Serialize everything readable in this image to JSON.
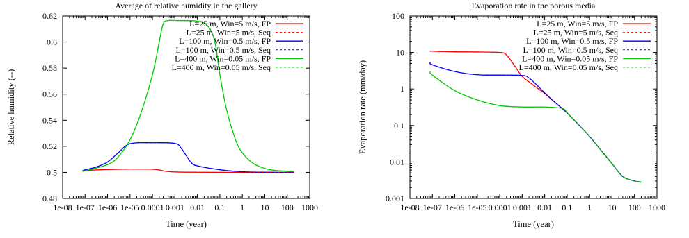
{
  "chart_data": [
    {
      "type": "line",
      "title": "Average of relative humidity in the gallery",
      "xlabel": "Time (year)",
      "ylabel": "Relative humidity (--)",
      "xscale": "log",
      "yscale": "linear",
      "xlim": [
        1e-08,
        1000
      ],
      "ylim": [
        0.48,
        0.62
      ],
      "x_tick_labels": [
        "1e-08",
        "1e-07",
        "1e-06",
        "1e-05",
        "0.0001",
        "0.001",
        "0.01",
        "0.1",
        "1",
        "10",
        "100",
        "1000"
      ],
      "y_tick_labels": [
        "0.48",
        "0.5",
        "0.52",
        "0.54",
        "0.56",
        "0.58",
        "0.6",
        "0.62"
      ],
      "grid": false,
      "legend_position": "top-right",
      "series": [
        {
          "name": "L=25 m, Win=5 m/s, FP",
          "color": "#ff0000",
          "dash": "solid",
          "x": [
            8e-08,
            1e-07,
            1e-06,
            1e-05,
            0.0001,
            0.0002,
            0.0004,
            0.001,
            0.01,
            0.1,
            1,
            10,
            200
          ],
          "y": [
            0.5012,
            0.5015,
            0.5022,
            0.5025,
            0.5024,
            0.5018,
            0.5008,
            0.5003,
            0.5001,
            0.5,
            0.5,
            0.5,
            0.5
          ]
        },
        {
          "name": "L=25 m, Win=5 m/s, Seq",
          "color": "#ff0000",
          "dash": "dashed",
          "x": [
            8e-08,
            1e-07,
            1e-06,
            1e-05,
            0.0001,
            0.0002,
            0.0004,
            0.001,
            0.01,
            0.1,
            1,
            10,
            200
          ],
          "y": [
            0.5012,
            0.5015,
            0.5022,
            0.5025,
            0.5024,
            0.5018,
            0.5008,
            0.5003,
            0.5001,
            0.5,
            0.5,
            0.5,
            0.5
          ]
        },
        {
          "name": "L=100 m, Win=0.5 m/s, FP",
          "color": "#0000ff",
          "dash": "solid",
          "x": [
            8e-08,
            1e-07,
            3e-07,
            1e-06,
            3e-06,
            1e-05,
            0.0001,
            0.001,
            0.002,
            0.005,
            0.01,
            0.1,
            1,
            10,
            200
          ],
          "y": [
            0.5012,
            0.502,
            0.504,
            0.508,
            0.515,
            0.522,
            0.5227,
            0.5222,
            0.518,
            0.508,
            0.505,
            0.502,
            0.5005,
            0.5001,
            0.5
          ]
        },
        {
          "name": "L=100 m, Win=0.5 m/s, Seq",
          "color": "#0000ff",
          "dash": "dashed",
          "x": [
            8e-08,
            1e-07,
            3e-07,
            1e-06,
            3e-06,
            1e-05,
            0.0001,
            0.001,
            0.002,
            0.005,
            0.01,
            0.1,
            1,
            10,
            200
          ],
          "y": [
            0.5012,
            0.502,
            0.504,
            0.508,
            0.515,
            0.522,
            0.5227,
            0.5222,
            0.518,
            0.508,
            0.505,
            0.502,
            0.5005,
            0.5001,
            0.5
          ]
        },
        {
          "name": "L=400 m, Win=0.05 m/s, FP",
          "color": "#00cc00",
          "dash": "solid",
          "x": [
            8e-08,
            1e-07,
            1e-06,
            3e-06,
            1e-05,
            3e-05,
            0.0001,
            0.0002,
            0.0003,
            0.0005,
            0.001,
            0.01,
            0.03,
            0.06,
            0.1,
            0.2,
            0.5,
            1,
            3,
            10,
            30,
            200
          ],
          "y": [
            0.501,
            0.5012,
            0.506,
            0.512,
            0.525,
            0.545,
            0.575,
            0.6,
            0.614,
            0.6165,
            0.6165,
            0.616,
            0.612,
            0.6,
            0.575,
            0.548,
            0.525,
            0.515,
            0.507,
            0.503,
            0.5015,
            0.5007
          ]
        },
        {
          "name": "L=400 m, Win=0.05 m/s, Seq",
          "color": "#00cc00",
          "dash": "dashed",
          "x": [
            8e-08,
            1e-07,
            1e-06,
            3e-06,
            1e-05,
            3e-05,
            0.0001,
            0.0002,
            0.0003,
            0.0005,
            0.001,
            0.01,
            0.03,
            0.06,
            0.1,
            0.2,
            0.5,
            1,
            3,
            10,
            30,
            200
          ],
          "y": [
            0.501,
            0.5012,
            0.506,
            0.512,
            0.525,
            0.545,
            0.575,
            0.6,
            0.614,
            0.6165,
            0.6165,
            0.616,
            0.612,
            0.6,
            0.575,
            0.548,
            0.525,
            0.515,
            0.507,
            0.503,
            0.5015,
            0.5007
          ]
        }
      ]
    },
    {
      "type": "line",
      "title": "Evaporation rate in the porous media",
      "xlabel": "Time (year)",
      "ylabel": "Evaporation rate (mm/day)",
      "xscale": "log",
      "yscale": "log",
      "xlim": [
        1e-08,
        1000
      ],
      "ylim": [
        0.001,
        100
      ],
      "x_tick_labels": [
        "1e-08",
        "1e-07",
        "1e-06",
        "1e-05",
        "0.0001",
        "0.001",
        "0.01",
        "0.1",
        "1",
        "10",
        "100",
        "1000"
      ],
      "y_tick_labels": [
        "0.001",
        "0.01",
        "0.1",
        "1",
        "10",
        "100"
      ],
      "grid": false,
      "legend_position": "top-right",
      "series": [
        {
          "name": "L=25 m, Win=5 m/s, FP",
          "color": "#ff0000",
          "dash": "solid",
          "x": [
            8e-08,
            1e-07,
            1e-06,
            1e-05,
            0.0001,
            0.0002,
            0.0005,
            0.001,
            0.003,
            0.01,
            0.03,
            0.1,
            0.3,
            1,
            3,
            10,
            30,
            100,
            200
          ],
          "y": [
            11,
            10.8,
            10.4,
            10.3,
            10,
            8.5,
            4,
            2.2,
            1.3,
            0.75,
            0.42,
            0.22,
            0.11,
            0.05,
            0.022,
            0.009,
            0.004,
            0.003,
            0.0028
          ]
        },
        {
          "name": "L=25 m, Win=5 m/s, Seq",
          "color": "#ff0000",
          "dash": "dashed",
          "x": [
            8e-08,
            1e-07,
            1e-06,
            1e-05,
            0.0001,
            0.0002,
            0.0005,
            0.001,
            0.003,
            0.01,
            0.03,
            0.1,
            0.3,
            1,
            3,
            10,
            30,
            100,
            200
          ],
          "y": [
            11,
            10.8,
            10.4,
            10.3,
            10,
            8.5,
            4,
            2.2,
            1.3,
            0.75,
            0.42,
            0.22,
            0.11,
            0.05,
            0.022,
            0.009,
            0.004,
            0.003,
            0.0028
          ]
        },
        {
          "name": "L=100 m, Win=0.5 m/s, FP",
          "color": "#0000ff",
          "dash": "solid",
          "x": [
            8e-08,
            1e-07,
            1e-06,
            1e-05,
            0.0001,
            0.001,
            0.002,
            0.005,
            0.01,
            0.03,
            0.1,
            0.3,
            1,
            3,
            10,
            30,
            100,
            200
          ],
          "y": [
            5.3,
            4.6,
            3,
            2.45,
            2.4,
            2.35,
            2,
            1.2,
            0.78,
            0.42,
            0.22,
            0.11,
            0.05,
            0.022,
            0.009,
            0.004,
            0.003,
            0.0028
          ]
        },
        {
          "name": "L=100 m, Win=0.5 m/s, Seq",
          "color": "#0000ff",
          "dash": "dashed",
          "x": [
            8e-08,
            1e-07,
            1e-06,
            1e-05,
            0.0001,
            0.001,
            0.002,
            0.005,
            0.01,
            0.03,
            0.1,
            0.3,
            1,
            3,
            10,
            30,
            100,
            200
          ],
          "y": [
            5.3,
            4.6,
            3,
            2.45,
            2.4,
            2.35,
            2,
            1.2,
            0.78,
            0.42,
            0.22,
            0.11,
            0.05,
            0.022,
            0.009,
            0.004,
            0.003,
            0.0028
          ]
        },
        {
          "name": "L=400 m, Win=0.05 m/s, FP",
          "color": "#00cc00",
          "dash": "solid",
          "x": [
            8e-08,
            1e-07,
            1e-06,
            1e-05,
            0.0001,
            0.001,
            0.01,
            0.05,
            0.08,
            0.1,
            0.3,
            1,
            3,
            10,
            30,
            100,
            200
          ],
          "y": [
            3,
            2.4,
            0.9,
            0.5,
            0.35,
            0.32,
            0.32,
            0.3,
            0.27,
            0.22,
            0.11,
            0.05,
            0.022,
            0.009,
            0.004,
            0.003,
            0.0028
          ]
        },
        {
          "name": "L=400 m, Win=0.05 m/s, Seq",
          "color": "#00cc00",
          "dash": "dashed",
          "x": [
            8e-08,
            1e-07,
            1e-06,
            1e-05,
            0.0001,
            0.001,
            0.01,
            0.05,
            0.08,
            0.1,
            0.3,
            1,
            3,
            10,
            30,
            100,
            200
          ],
          "y": [
            3,
            2.4,
            0.9,
            0.5,
            0.35,
            0.32,
            0.32,
            0.3,
            0.27,
            0.22,
            0.11,
            0.05,
            0.022,
            0.009,
            0.004,
            0.003,
            0.0028
          ]
        }
      ]
    }
  ]
}
